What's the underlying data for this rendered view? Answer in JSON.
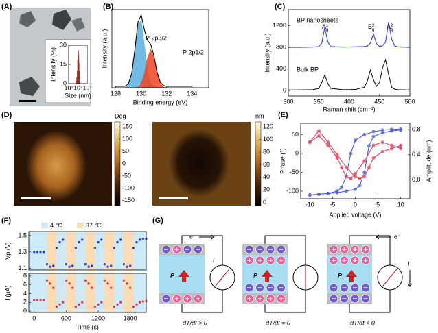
{
  "panel_labels": [
    "(A)",
    "(B)",
    "(C)",
    "(D)",
    "(E)",
    "(F)",
    "(G)"
  ],
  "chart_data": [
    {
      "type": "histogram",
      "xlabel": "Size (nm)",
      "ylabel": "Intensity (%)",
      "bins": [
        60,
        70,
        80,
        90,
        100,
        110,
        120,
        130,
        140,
        150,
        160,
        170,
        180
      ],
      "counts": [
        2,
        5,
        10,
        18,
        24,
        26,
        22,
        16,
        10,
        5,
        2,
        1
      ],
      "color": "#e8503a",
      "xscale": "log",
      "xlim": [
        10,
        1000
      ],
      "xticks": [
        {
          "value": 10,
          "label": "10¹"
        },
        {
          "value": 100,
          "label": "10²"
        },
        {
          "value": 1000,
          "label": "10³"
        }
      ],
      "ylim": [
        0,
        30
      ],
      "yticks": [
        0,
        15,
        30
      ]
    },
    {
      "type": "area",
      "xlabel": "Binding energy (eV)",
      "ylabel": "Intensity (a.u.)",
      "x": [
        128,
        128.25,
        128.5,
        128.75,
        129,
        129.25,
        129.5,
        129.75,
        130,
        130.25,
        130.5,
        130.75,
        131,
        131.25,
        131.5,
        131.75,
        132,
        132.25,
        132.5,
        132.75,
        133,
        133.25,
        133.5,
        133.75,
        134
      ],
      "series": [
        {
          "name": "P 2p3/2",
          "color": "#5aaee0",
          "fill": true,
          "values": [
            0,
            0,
            0,
            0,
            0.04,
            0.18,
            0.52,
            0.91,
            0.96,
            0.61,
            0.23,
            0.05,
            0.01,
            0,
            0,
            0,
            0,
            0,
            0,
            0,
            0,
            0,
            0,
            0,
            0
          ]
        },
        {
          "name": "P 2p1/2",
          "color": "#ee4422",
          "fill": true,
          "values": [
            0,
            0,
            0,
            0,
            0,
            0,
            0,
            0.01,
            0.06,
            0.2,
            0.43,
            0.55,
            0.43,
            0.2,
            0.06,
            0.01,
            0,
            0,
            0,
            0,
            0,
            0,
            0,
            0,
            0
          ]
        },
        {
          "color": "#000000",
          "fill": false,
          "values": [
            0.02,
            0.02,
            0.02,
            0.02,
            0.06,
            0.2,
            0.54,
            0.94,
            1.04,
            0.83,
            0.68,
            0.62,
            0.46,
            0.22,
            0.08,
            0.03,
            0.02,
            0.02,
            0.02,
            0.02,
            0.02,
            0.02,
            0.02,
            0.02,
            0.02
          ]
        }
      ],
      "xlim": [
        127.7,
        135.3
      ],
      "xticks": [
        128,
        130,
        132,
        134
      ],
      "ylim": [
        0,
        1.12
      ]
    },
    {
      "type": "line",
      "xlabel": "Raman shift (cm⁻¹)",
      "ylabel": "Intensity (a.u.)",
      "x": [
        300,
        320,
        340,
        350,
        355,
        360,
        365,
        370,
        390,
        410,
        425,
        430,
        435,
        440,
        445,
        450,
        455,
        460,
        465,
        470,
        475,
        480,
        500
      ],
      "series": [
        {
          "name": "BP nanosheets",
          "color": "#2b3fd6",
          "values": [
            800,
            800,
            805,
            815,
            880,
            1170,
            900,
            815,
            805,
            810,
            815,
            825,
            880,
            1050,
            870,
            820,
            830,
            900,
            1270,
            950,
            830,
            810,
            800
          ]
        },
        {
          "name": "Bulk BP",
          "color": "#111111",
          "values": [
            10,
            12,
            15,
            40,
            150,
            290,
            130,
            40,
            15,
            20,
            60,
            170,
            380,
            200,
            80,
            150,
            420,
            570,
            300,
            60,
            25,
            15,
            10
          ]
        }
      ],
      "peak_labels": [
        {
          "base": "A",
          "sup": "1",
          "sub": "g"
        },
        {
          "base": "B",
          "sup": "2",
          "sub": "g"
        },
        {
          "base": "A",
          "sup": "2",
          "sub": "g"
        }
      ],
      "xlim": [
        300,
        500
      ],
      "xticks": [
        300,
        350,
        400,
        450,
        500
      ],
      "ylim": [
        -100,
        1500
      ],
      "yticks": [
        0,
        400,
        800,
        1200
      ]
    },
    {
      "type": "colorbar",
      "label": "Deg",
      "colors": [
        "#000000",
        "#4a2206",
        "#a85e18",
        "#e0b050",
        "#ffffe0"
      ],
      "ylim": [
        -170,
        170
      ],
      "yticks": [
        150,
        100,
        50,
        0,
        -50,
        -100,
        -150
      ]
    },
    {
      "type": "colorbar",
      "label": "nm",
      "colors": [
        "#000000",
        "#4a2206",
        "#a85e18",
        "#e0b050",
        "#ffffe0"
      ],
      "ylim": [
        -5,
        128
      ],
      "yticks": [
        120,
        100,
        80,
        60,
        40,
        20,
        0
      ]
    },
    {
      "type": "line",
      "xlabel": "Applied voltage (V)",
      "ylabel": "Phase (°)",
      "y2label": "Amplitude (nm)",
      "markers": true,
      "colored_axis_labels": true,
      "x": [
        -10,
        -8,
        -6,
        -4,
        -2,
        0,
        1,
        2,
        3,
        4,
        6,
        8,
        10,
        10,
        8,
        6,
        4,
        2,
        0,
        -1,
        -2,
        -3,
        -4,
        -6,
        -8,
        -10
      ],
      "series": [
        {
          "color": "#4a5bd6",
          "values": [
            -110,
            -108,
            -106,
            -104,
            -100,
            -95,
            -85,
            -50,
            20,
            45,
            55,
            60,
            62,
            65,
            64,
            62,
            58,
            50,
            35,
            0,
            -60,
            -90,
            -100,
            -106,
            -108,
            -110
          ]
        },
        {
          "color": "#e8405a",
          "axis": "y2",
          "values": [
            0.6,
            0.78,
            0.6,
            0.4,
            0.2,
            0.05,
            0.02,
            0.05,
            0.2,
            0.35,
            0.45,
            0.5,
            0.55,
            0.5,
            0.55,
            0.6,
            0.55,
            0.3,
            0.1,
            0.02,
            0.05,
            0.2,
            0.35,
            0.55,
            0.7,
            0.6
          ]
        }
      ],
      "xlim": [
        -12,
        12
      ],
      "xticks": [
        -10,
        -5,
        0,
        5,
        10
      ],
      "ylim": [
        -120,
        80
      ],
      "yticks": [
        -100,
        -50,
        0,
        50
      ],
      "y2lim": [
        -0.3,
        0.9
      ],
      "y2ticks": [
        {
          "value": 0,
          "label": "0.0"
        },
        0.4,
        0.8
      ]
    },
    {
      "type": "scatter",
      "ylabel": "Vp (V)",
      "colored_axis_labels": true,
      "x": [
        0,
        60,
        120,
        180,
        240,
        300,
        360,
        420,
        480,
        540,
        600,
        660,
        720,
        780,
        840,
        900,
        960,
        1020,
        1080,
        1140,
        1200,
        1260,
        1320,
        1380,
        1440,
        1500,
        1560,
        1620,
        1680,
        1740,
        1800,
        1860,
        1920,
        1980,
        2040,
        2100
      ],
      "series": [
        {
          "color": "#2b3fd6",
          "values": [
            1.3,
            1.3,
            1.3,
            1.3,
            1.15,
            1.12,
            1.13,
            1.35,
            1.42,
            1.45,
            1.15,
            1.12,
            1.13,
            1.35,
            1.42,
            1.45,
            1.15,
            1.12,
            1.13,
            1.35,
            1.42,
            1.45,
            1.15,
            1.12,
            1.13,
            1.35,
            1.42,
            1.45,
            1.15,
            1.12,
            1.13,
            1.35,
            1.42,
            1.45,
            1.46,
            1.46
          ]
        }
      ],
      "bands": [
        {
          "name": "4 °C",
          "color": "#cdeaf6"
        },
        {
          "name": "37 °C",
          "color": "#fcdcb4",
          "ranges": [
            [
              240,
              420
            ],
            [
              600,
              780
            ],
            [
              960,
              1140
            ],
            [
              1320,
              1500
            ],
            [
              1680,
              1860
            ]
          ]
        }
      ],
      "xlim": [
        -100,
        2100
      ],
      "ylim": [
        1.08,
        1.55
      ],
      "yticks": [
        1.1,
        1.3,
        1.5
      ]
    },
    {
      "type": "scatter",
      "ylabel": "I (μA)",
      "xlabel": "Time (s)",
      "colored_axis_labels": true,
      "x": [
        0,
        60,
        120,
        180,
        240,
        300,
        360,
        420,
        480,
        540,
        600,
        660,
        720,
        780,
        840,
        900,
        960,
        1020,
        1080,
        1140,
        1200,
        1260,
        1320,
        1380,
        1440,
        1500,
        1560,
        1620,
        1680,
        1740,
        1800,
        1860,
        1920,
        1980,
        2040,
        2100
      ],
      "series": [
        {
          "color": "#e8384f",
          "values": [
            2.5,
            2.5,
            2.5,
            2.5,
            7,
            6.3,
            5.3,
            1,
            1.5,
            2,
            7,
            6.3,
            5.3,
            1,
            1.5,
            2,
            7,
            6.3,
            5.3,
            1,
            1.5,
            2,
            7,
            6.3,
            5.3,
            1,
            1.5,
            2,
            7,
            6.3,
            5.3,
            1,
            1.5,
            2,
            2.2,
            2.3
          ]
        }
      ],
      "xlim": [
        -100,
        2100
      ],
      "xticks": [
        0,
        600,
        1200,
        1800
      ],
      "ylim": [
        -0.3,
        8.6
      ],
      "yticks": [
        0,
        2,
        4,
        6,
        8
      ]
    }
  ],
  "diagram": {
    "panels": [
      {
        "electron": "e⁻",
        "current": "I",
        "polarization": "P",
        "caption": "dT/dt > 0"
      },
      {
        "polarization": "P",
        "caption": "dT/dt = 0"
      },
      {
        "electron": "e⁻",
        "current": "I",
        "polarization": "P",
        "caption": "dT/dt < 0"
      }
    ]
  }
}
